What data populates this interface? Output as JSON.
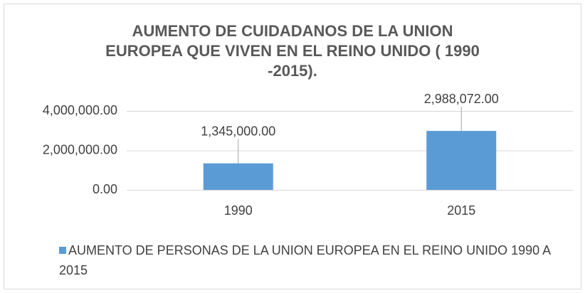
{
  "chart_data": {
    "type": "bar",
    "title": "AUMENTO DE CUIDADANOS DE LA UNION EUROPEA QUE VIVEN EN EL REINO UNIDO ( 1990 -2015).",
    "categories": [
      "1990",
      "2015"
    ],
    "series": [
      {
        "name": "AUMENTO DE PERSONAS DE LA UNION EUROPEA EN EL REINO UNIDO 1990 A 2015",
        "color": "#5b9bd5",
        "values": [
          1345000,
          2988072
        ],
        "value_labels": [
          "1,345,000.00",
          "2,988,072.00"
        ]
      }
    ],
    "ylim": [
      0,
      4000000
    ],
    "yticks": [
      {
        "value": 0,
        "label": "0.00"
      },
      {
        "value": 2000000,
        "label": "2,000,000.00"
      },
      {
        "value": 4000000,
        "label": "4,000,000.00"
      }
    ],
    "grid": true,
    "legend": "bottom"
  }
}
